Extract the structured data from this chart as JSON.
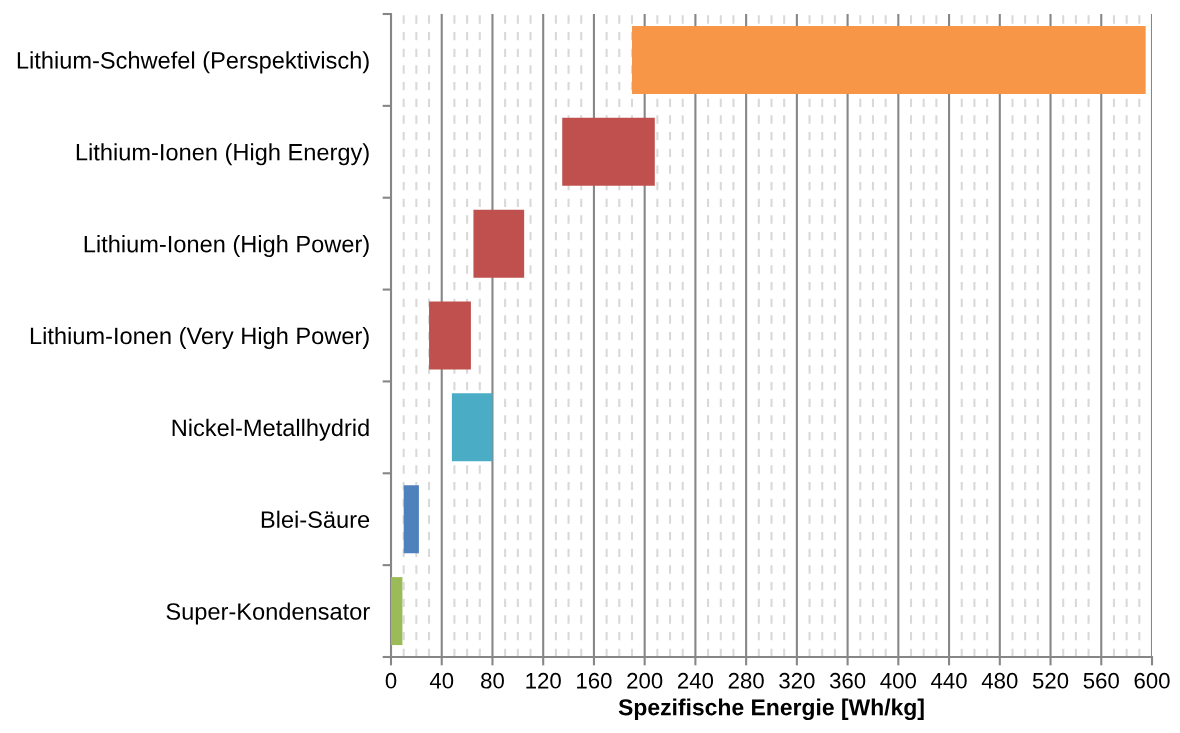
{
  "chart_data": {
    "type": "bar",
    "orientation": "horizontal",
    "xlabel": "Spezifische Energie [Wh/kg]",
    "categories": [
      "Lithium-Schwefel (Perspektivisch)",
      "Lithium-Ionen (High Energy)",
      "Lithium-Ionen (High Power)",
      "Lithium-Ionen (Very High Power)",
      "Nickel-Metallhydrid",
      "Blei-Säure",
      "Super-Kondensator"
    ],
    "values": [
      405,
      73,
      40,
      33,
      32,
      12,
      9
    ],
    "base": [
      190,
      135,
      65,
      30,
      48,
      10,
      0
    ],
    "colors": [
      "#f79646",
      "#c0504d",
      "#c0504d",
      "#c0504d",
      "#4bacc6",
      "#4f81bd",
      "#9bbb59"
    ],
    "xlim": [
      0,
      600
    ],
    "xticks": [
      0,
      {
        "value": 10,
        "label": null
      },
      {
        "value": 20,
        "label": null
      },
      {
        "value": 30,
        "label": null
      },
      40,
      {
        "value": 50,
        "label": null
      },
      {
        "value": 60,
        "label": null
      },
      {
        "value": 70,
        "label": null
      },
      80,
      {
        "value": 90,
        "label": null
      },
      {
        "value": 100,
        "label": null
      },
      {
        "value": 110,
        "label": null
      },
      120,
      {
        "value": 130,
        "label": null
      },
      {
        "value": 140,
        "label": null
      },
      {
        "value": 150,
        "label": null
      },
      160,
      {
        "value": 170,
        "label": null
      },
      {
        "value": 180,
        "label": null
      },
      {
        "value": 190,
        "label": null
      },
      200,
      {
        "value": 210,
        "label": null
      },
      {
        "value": 220,
        "label": null
      },
      {
        "value": 230,
        "label": null
      },
      240,
      {
        "value": 250,
        "label": null
      },
      {
        "value": 260,
        "label": null
      },
      {
        "value": 270,
        "label": null
      },
      280,
      {
        "value": 290,
        "label": null
      },
      {
        "value": 300,
        "label": null
      },
      {
        "value": 310,
        "label": null
      },
      320,
      {
        "value": 330,
        "label": null
      },
      {
        "value": 340,
        "label": null
      },
      {
        "value": 350,
        "label": null
      },
      360,
      {
        "value": 370,
        "label": null
      },
      {
        "value": 380,
        "label": null
      },
      {
        "value": 390,
        "label": null
      },
      400,
      {
        "value": 410,
        "label": null
      },
      {
        "value": 420,
        "label": null
      },
      {
        "value": 430,
        "label": null
      },
      440,
      {
        "value": 450,
        "label": null
      },
      {
        "value": 460,
        "label": null
      },
      {
        "value": 470,
        "label": null
      },
      480,
      {
        "value": 490,
        "label": null
      },
      {
        "value": 500,
        "label": null
      },
      {
        "value": 510,
        "label": null
      },
      520,
      {
        "value": 530,
        "label": null
      },
      {
        "value": 540,
        "label": null
      },
      {
        "value": 550,
        "label": null
      },
      560,
      {
        "value": 570,
        "label": null
      },
      {
        "value": 580,
        "label": null
      },
      {
        "value": 590,
        "label": null
      },
      600
    ],
    "grid": "x"
  }
}
